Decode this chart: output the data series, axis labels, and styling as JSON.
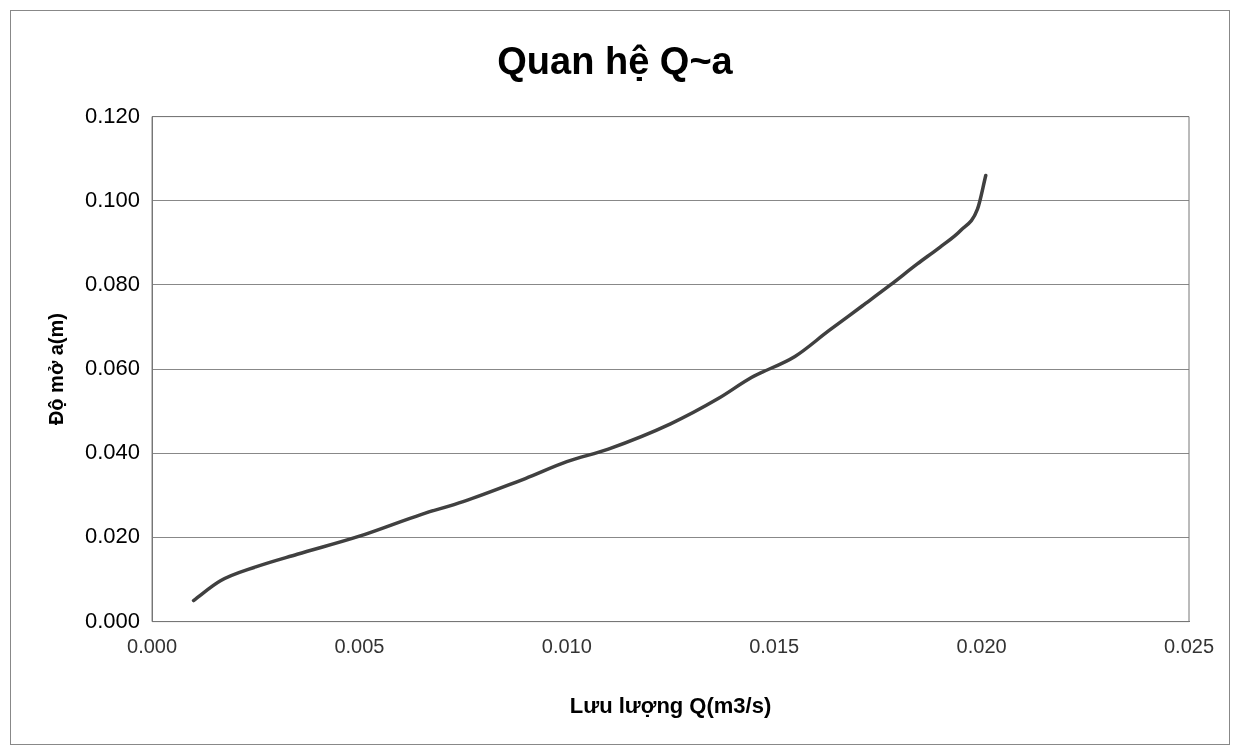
{
  "chart_data": {
    "type": "line",
    "title": "Quan hệ Q~a",
    "xlabel": "Lưu lượng Q(m3/s)",
    "ylabel": "Độ mở a(m)",
    "x": [
      0.001,
      0.00165,
      0.0025,
      0.0035,
      0.005,
      0.0065,
      0.0075,
      0.009,
      0.01,
      0.011,
      0.0125,
      0.01365,
      0.01445,
      0.0155,
      0.0163,
      0.01712,
      0.0178,
      0.01845,
      0.019,
      0.0195,
      0.0199,
      0.0201
    ],
    "series": [
      {
        "color": "#404040",
        "values": [
          0.005,
          0.0097,
          0.013,
          0.016,
          0.0203,
          0.0255,
          0.0285,
          0.034,
          0.038,
          0.041,
          0.047,
          0.053,
          0.058,
          0.063,
          0.069,
          0.075,
          0.08,
          0.085,
          0.089,
          0.093,
          0.098,
          0.106
        ]
      }
    ],
    "xlim": [
      0,
      0.025
    ],
    "xticks": [
      {
        "value": 0,
        "label": "0.000"
      },
      {
        "value": 0.005,
        "label": "0.005"
      },
      {
        "value": 0.01,
        "label": "0.010"
      },
      {
        "value": 0.015,
        "label": "0.015"
      },
      {
        "value": 0.02,
        "label": "0.020"
      },
      {
        "value": 0.025,
        "label": "0.025"
      }
    ],
    "ylim": [
      0,
      0.12
    ],
    "yticks": [
      {
        "value": 0,
        "label": "0.000"
      },
      {
        "value": 0.02,
        "label": "0.020"
      },
      {
        "value": 0.04,
        "label": "0.040"
      },
      {
        "value": 0.06,
        "label": "0.060"
      },
      {
        "value": 0.08,
        "label": "0.080"
      },
      {
        "value": 0.1,
        "label": "0.100"
      },
      {
        "value": 0.12,
        "label": "0.120"
      }
    ],
    "grid": "y",
    "marker": "none",
    "line_style": "solid",
    "legend": false
  }
}
